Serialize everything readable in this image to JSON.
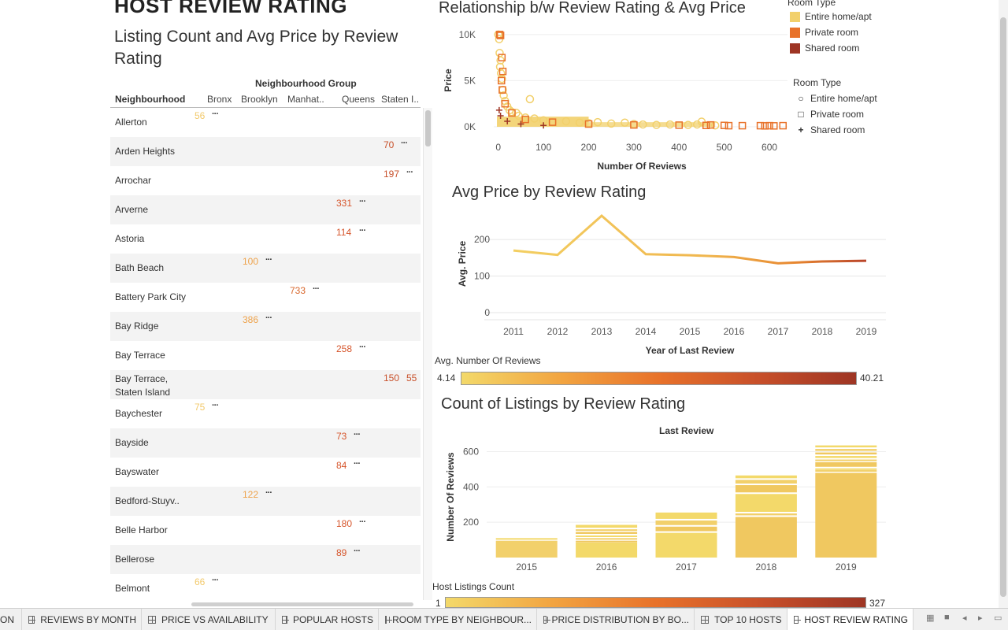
{
  "header": {
    "title": "HOST REVIEW RATING",
    "subtitle": "Listing Count and Avg Price by Review Rating"
  },
  "table": {
    "group_header": "Neighbourhood Group",
    "columns": [
      "Neighbourhood",
      "Bronx",
      "Brooklyn",
      "Manhat..",
      "Queens",
      "Staten I.."
    ],
    "rows": [
      {
        "name": "Allerton",
        "cells": [
          {
            "text": "56",
            "col": "Bronx",
            "color": "#f2c96b"
          }
        ]
      },
      {
        "name": "Arden Heights",
        "cells": [
          {
            "text": "70",
            "col": "Staten",
            "color": "#c8502a"
          }
        ]
      },
      {
        "name": "Arrochar",
        "cells": [
          {
            "text": "197",
            "col": "Staten",
            "color": "#c8502a"
          }
        ]
      },
      {
        "name": "Arverne",
        "cells": [
          {
            "text": "331",
            "col": "Queens",
            "color": "#d6552b"
          }
        ]
      },
      {
        "name": "Astoria",
        "cells": [
          {
            "text": "114",
            "col": "Queens",
            "color": "#d6552b"
          }
        ]
      },
      {
        "name": "Bath Beach",
        "cells": [
          {
            "text": "100",
            "col": "Brooklyn",
            "color": "#eea24a"
          }
        ]
      },
      {
        "name": "Battery Park City",
        "cells": [
          {
            "text": "733",
            "col": "Manhattan",
            "color": "#d9682e"
          }
        ]
      },
      {
        "name": "Bay Ridge",
        "cells": [
          {
            "text": "386",
            "col": "Brooklyn",
            "color": "#eea24a"
          }
        ]
      },
      {
        "name": "Bay Terrace",
        "cells": [
          {
            "text": "258",
            "col": "Queens",
            "color": "#d6552b"
          }
        ]
      },
      {
        "name": "Bay Terrace, Staten Island",
        "cells": [
          {
            "text": "150",
            "col": "Staten",
            "color": "#c8502a"
          },
          {
            "text": "55",
            "col": "Staten2",
            "color": "#c8502a"
          }
        ]
      },
      {
        "name": "Baychester",
        "cells": [
          {
            "text": "75",
            "col": "Bronx",
            "color": "#f2c96b"
          }
        ]
      },
      {
        "name": "Bayside",
        "cells": [
          {
            "text": "73",
            "col": "Queens",
            "color": "#d6552b"
          }
        ]
      },
      {
        "name": "Bayswater",
        "cells": [
          {
            "text": "84",
            "col": "Queens",
            "color": "#d6552b"
          }
        ]
      },
      {
        "name": "Bedford-Stuyv..",
        "cells": [
          {
            "text": "122",
            "col": "Brooklyn",
            "color": "#eea24a"
          }
        ]
      },
      {
        "name": "Belle Harbor",
        "cells": [
          {
            "text": "180",
            "col": "Queens",
            "color": "#d6552b"
          }
        ]
      },
      {
        "name": "Bellerose",
        "cells": [
          {
            "text": "89",
            "col": "Queens",
            "color": "#d6552b"
          }
        ]
      },
      {
        "name": "Belmont",
        "cells": [
          {
            "text": "66",
            "col": "Bronx",
            "color": "#f2c96b"
          }
        ]
      }
    ],
    "more_glyph": "···"
  },
  "scatter_panel": {
    "title": "Relationship b/w Review Rating & Avg Price",
    "legend_color": {
      "title": "Room Type",
      "items": [
        {
          "label": "Entire home/apt",
          "color": "#f2d06b"
        },
        {
          "label": "Private room",
          "color": "#e8722a"
        },
        {
          "label": "Shared room",
          "color": "#9e3524"
        }
      ]
    },
    "legend_shape": {
      "title": "Room Type",
      "items": [
        {
          "label": "Entire home/apt",
          "icon": "circle-icon",
          "glyph": "○"
        },
        {
          "label": "Private room",
          "icon": "square-icon",
          "glyph": "□"
        },
        {
          "label": "Shared room",
          "icon": "plus-icon",
          "glyph": "+"
        }
      ]
    }
  },
  "line_panel": {
    "title": "Avg Price by Review Rating"
  },
  "gradient1": {
    "title": "Avg. Number Of Reviews",
    "min": "4.14",
    "max": "40.21"
  },
  "bar_panel": {
    "title": "Count of Listings by Review Rating",
    "column_header": "Last Review"
  },
  "gradient2": {
    "title": "Host Listings Count",
    "min": "1",
    "max": "327"
  },
  "tabs": [
    {
      "label": "ON",
      "active": false
    },
    {
      "label": "REVIEWS BY MONTH",
      "active": false
    },
    {
      "label": "PRICE VS AVAILABILITY",
      "active": false
    },
    {
      "label": "POPULAR HOSTS",
      "active": false
    },
    {
      "label": "ROOM TYPE BY NEIGHBOUR...",
      "active": false
    },
    {
      "label": "PRICE DISTRIBUTION BY BO...",
      "active": false
    },
    {
      "label": "TOP 10 HOSTS",
      "active": false
    },
    {
      "label": "HOST REVIEW RATING",
      "active": true
    }
  ],
  "chart_data": [
    {
      "type": "scatter",
      "xlabel": "Number Of Reviews",
      "ylabel": "Price",
      "xticks": [
        "0",
        "100",
        "200",
        "300",
        "400",
        "500",
        "600"
      ],
      "yticks": [
        "10K",
        "5K",
        "0K"
      ],
      "xlim": [
        -10,
        640
      ],
      "ylim": [
        0,
        10500
      ],
      "series": [
        {
          "name": "Entire home/apt",
          "marker": "circle",
          "color": "#f2d06b",
          "points": [
            [
              0,
              10000
            ],
            [
              2,
              9500
            ],
            [
              3,
              8000
            ],
            [
              5,
              7200
            ],
            [
              4,
              6500
            ],
            [
              6,
              5800
            ],
            [
              8,
              5200
            ],
            [
              10,
              4000
            ],
            [
              12,
              3400
            ],
            [
              15,
              2800
            ],
            [
              20,
              2200
            ],
            [
              25,
              1800
            ],
            [
              30,
              1600
            ],
            [
              40,
              1500
            ],
            [
              45,
              1200
            ],
            [
              60,
              1000
            ],
            [
              70,
              3000
            ],
            [
              80,
              900
            ],
            [
              100,
              700
            ],
            [
              120,
              500
            ],
            [
              150,
              600
            ],
            [
              180,
              450
            ],
            [
              200,
              400
            ],
            [
              220,
              500
            ],
            [
              250,
              350
            ],
            [
              280,
              450
            ],
            [
              300,
              300
            ],
            [
              320,
              250
            ],
            [
              350,
              200
            ],
            [
              380,
              250
            ],
            [
              420,
              200
            ],
            [
              440,
              250
            ],
            [
              450,
              550
            ],
            [
              480,
              150
            ]
          ]
        },
        {
          "name": "Private room",
          "marker": "square",
          "color": "#e8722a",
          "points": [
            [
              3,
              10000
            ],
            [
              5,
              9900
            ],
            [
              8,
              7500
            ],
            [
              10,
              6000
            ],
            [
              7,
              5000
            ],
            [
              9,
              4000
            ],
            [
              15,
              2500
            ],
            [
              30,
              1500
            ],
            [
              60,
              800
            ],
            [
              120,
              500
            ],
            [
              200,
              300
            ],
            [
              300,
              200
            ],
            [
              400,
              180
            ],
            [
              460,
              150
            ],
            [
              470,
              200
            ],
            [
              500,
              150
            ],
            [
              510,
              120
            ],
            [
              540,
              120
            ],
            [
              580,
              120
            ],
            [
              590,
              100
            ],
            [
              600,
              120
            ],
            [
              610,
              100
            ],
            [
              630,
              120
            ]
          ]
        },
        {
          "name": "Shared room",
          "marker": "plus",
          "color": "#9e3524",
          "points": [
            [
              2,
              1800
            ],
            [
              5,
              1200
            ],
            [
              20,
              600
            ],
            [
              50,
              300
            ],
            [
              100,
              150
            ]
          ]
        }
      ]
    },
    {
      "type": "line",
      "xlabel": "Year of Last Review",
      "ylabel": "Avg. Price",
      "x": [
        2011,
        2012,
        2013,
        2014,
        2015,
        2016,
        2017,
        2018,
        2019
      ],
      "y": [
        170,
        158,
        265,
        160,
        157,
        152,
        135,
        140,
        142
      ],
      "yticks": [
        0,
        100,
        200
      ],
      "ylim": [
        0,
        280
      ]
    },
    {
      "type": "bar",
      "column_header": "Last Review",
      "ylabel": "Number Of Reviews",
      "categories": [
        "2015",
        "2016",
        "2017",
        "2018",
        "2019"
      ],
      "yticks": [
        200,
        400,
        600
      ],
      "ylim": [
        0,
        660
      ],
      "segment_tops": [
        [
          110,
          95
        ],
        [
          185,
          160,
          145,
          125,
          110,
          95,
          85
        ],
        [
          255,
          210,
          175,
          140
        ],
        [
          465,
          440,
          410,
          360,
          250,
          230
        ],
        [
          635,
          615,
          595,
          575,
          555,
          540,
          505,
          495,
          480
        ]
      ]
    }
  ]
}
